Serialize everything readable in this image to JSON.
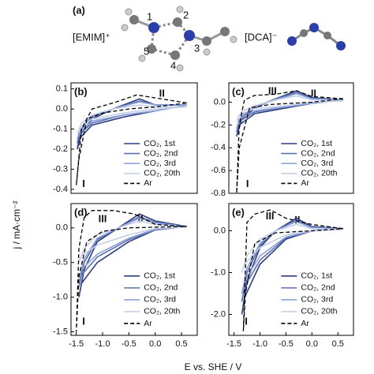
{
  "figure_a": {
    "label": "(a)",
    "cation": "[EMIM]⁺",
    "anion": "[DCA]⁻",
    "atom_numbers": [
      "1",
      "2",
      "3",
      "4",
      "5"
    ]
  },
  "shared_labels": {
    "x": "E vs. SHE / V",
    "y": "j / mA·cm⁻²"
  },
  "chart_data": [
    {
      "type": "line",
      "label": "(b)",
      "annotations": [
        "II",
        "I"
      ],
      "xlim": [
        -1.6,
        0.8
      ],
      "ylim": [
        -0.42,
        0.13
      ],
      "yticks": [
        0.1,
        {
          "value": 0,
          "label": "0.0"
        },
        -0.1,
        -0.2,
        -0.3,
        -0.4
      ],
      "series": [
        {
          "name": "CO₂, 1st",
          "color": "#2c3e80",
          "x": [
            0.6,
            0,
            -0.3,
            -0.8,
            -1.2,
            -1.4,
            -1.48,
            -1.45,
            -1.2,
            -0.6,
            0,
            0.6
          ],
          "values": [
            0.02,
            0.02,
            0.05,
            0,
            -0.05,
            -0.12,
            -0.2,
            -0.15,
            -0.08,
            -0.04,
            -0.01,
            0.02
          ]
        },
        {
          "name": "CO₂, 2nd",
          "color": "#5a6fb0",
          "x": [
            0.6,
            0,
            -0.3,
            -0.8,
            -1.2,
            -1.4,
            -1.48,
            -1.45,
            -1.2,
            -0.6,
            0,
            0.6
          ],
          "values": [
            0.02,
            0.02,
            0.04,
            0,
            -0.04,
            -0.1,
            -0.17,
            -0.13,
            -0.07,
            -0.03,
            -0.01,
            0.02
          ]
        },
        {
          "name": "CO₂, 3rd",
          "color": "#8ea2d8",
          "x": [
            0.6,
            0,
            -0.3,
            -0.8,
            -1.2,
            -1.4,
            -1.48,
            -1.45,
            -1.2,
            -0.6,
            0,
            0.6
          ],
          "values": [
            0.02,
            0.02,
            0.035,
            0,
            -0.035,
            -0.09,
            -0.15,
            -0.12,
            -0.06,
            -0.03,
            -0.01,
            0.02
          ]
        },
        {
          "name": "CO₂, 20th",
          "color": "#c5cfe8",
          "x": [
            0.6,
            0,
            -0.3,
            -0.8,
            -1.2,
            -1.4,
            -1.48,
            -1.45,
            -1.2,
            -0.6,
            0,
            0.6
          ],
          "values": [
            0.01,
            0.01,
            0.02,
            0,
            -0.03,
            -0.07,
            -0.12,
            -0.1,
            -0.05,
            -0.02,
            0,
            0.01
          ]
        },
        {
          "name": "Ar",
          "color": "#000000",
          "x": [
            0.6,
            -0.35,
            -0.8,
            -1.2,
            -1.4,
            -1.5,
            -1.45,
            -1.3,
            -1.0,
            -0.5,
            0,
            0.6
          ],
          "values": [
            0.03,
            0.07,
            0.03,
            0,
            -0.1,
            -0.38,
            -0.25,
            -0.05,
            -0.02,
            0,
            0.01,
            0.03
          ]
        }
      ]
    },
    {
      "type": "line",
      "label": "(c)",
      "annotations": [
        "III",
        "II",
        "I"
      ],
      "xlim": [
        -1.6,
        0.8
      ],
      "ylim": [
        -0.8,
        0.17
      ],
      "yticks": [
        {
          "value": 0,
          "label": "0.0"
        },
        -0.2,
        -0.4,
        -0.6,
        -0.8
      ],
      "series": [
        {
          "name": "CO₂, 1st",
          "color": "#2c3e80",
          "x": [
            0.6,
            0,
            -0.3,
            -0.7,
            -1.1,
            -1.35,
            -1.45,
            -1.4,
            -1.1,
            -0.5,
            0,
            0.6
          ],
          "values": [
            0.02,
            0.04,
            0.1,
            0.03,
            -0.05,
            -0.15,
            -0.3,
            -0.2,
            -0.1,
            -0.05,
            -0.01,
            0.02
          ]
        },
        {
          "name": "CO₂, 2nd",
          "color": "#5a6fb0",
          "x": [
            0.6,
            0,
            -0.3,
            -0.7,
            -1.1,
            -1.35,
            -1.45,
            -1.4,
            -1.1,
            -0.5,
            0,
            0.6
          ],
          "values": [
            0.02,
            0.03,
            0.085,
            0.03,
            -0.04,
            -0.13,
            -0.26,
            -0.17,
            -0.085,
            -0.04,
            -0.01,
            0.02
          ]
        },
        {
          "name": "CO₂, 3rd",
          "color": "#8ea2d8",
          "x": [
            0.6,
            0,
            -0.3,
            -0.7,
            -1.1,
            -1.35,
            -1.45,
            -1.4,
            -1.1,
            -0.5,
            0,
            0.6
          ],
          "values": [
            0.02,
            0.03,
            0.075,
            0.02,
            -0.04,
            -0.11,
            -0.23,
            -0.15,
            -0.075,
            -0.04,
            -0.01,
            0.02
          ]
        },
        {
          "name": "CO₂, 20th",
          "color": "#c5cfe8",
          "x": [
            0.6,
            0,
            -0.3,
            -0.7,
            -1.1,
            -1.35,
            -1.45,
            -1.4,
            -1.1,
            -0.5,
            0,
            0.6
          ],
          "values": [
            0.01,
            0.02,
            0.055,
            0.02,
            -0.03,
            -0.08,
            -0.17,
            -0.11,
            -0.055,
            -0.03,
            0,
            0.01
          ]
        },
        {
          "name": "Ar",
          "color": "#000000",
          "x": [
            0.6,
            0,
            -0.3,
            -0.7,
            -1.1,
            -1.3,
            -1.4,
            -1.45,
            -1.4,
            -1.2,
            -0.8,
            0,
            0.6
          ],
          "values": [
            0.03,
            0.05,
            0.1,
            0.07,
            0.06,
            0.02,
            -0.2,
            -0.8,
            -0.4,
            -0.05,
            -0.02,
            0,
            0.03
          ]
        }
      ]
    },
    {
      "type": "line",
      "label": "(d)",
      "annotations": [
        "III",
        "II",
        "I"
      ],
      "xlim": [
        -1.6,
        0.8
      ],
      "ylim": [
        -1.55,
        0.35
      ],
      "xticks": [
        -1.5,
        {
          "value": -1,
          "label": "-1.0"
        },
        -0.5,
        {
          "value": 0,
          "label": "0.0"
        },
        0.5
      ],
      "yticks": [
        {
          "value": 0,
          "label": "0.0"
        },
        -0.5,
        {
          "value": -1,
          "label": "-1.0"
        },
        -1.5
      ],
      "series": [
        {
          "name": "CO₂, 1st",
          "color": "#2c3e80",
          "x": [
            0.6,
            0,
            -0.3,
            -0.7,
            -1.1,
            -1.35,
            -1.45,
            -1.4,
            -1.1,
            -0.5,
            0,
            0.6
          ],
          "values": [
            0.02,
            0.1,
            0.2,
            0,
            -0.2,
            -0.6,
            -1.0,
            -0.8,
            -0.5,
            -0.2,
            -0.03,
            0.02
          ]
        },
        {
          "name": "CO₂, 2nd",
          "color": "#5a6fb0",
          "x": [
            0.6,
            0,
            -0.3,
            -0.7,
            -1.1,
            -1.35,
            -1.45,
            -1.4,
            -1.1,
            -0.5,
            0,
            0.6
          ],
          "values": [
            0.02,
            0.08,
            0.16,
            0,
            -0.17,
            -0.5,
            -0.85,
            -0.68,
            -0.42,
            -0.17,
            -0.03,
            0.02
          ]
        },
        {
          "name": "CO₂, 3rd",
          "color": "#8ea2d8",
          "x": [
            0.6,
            0,
            -0.3,
            -0.7,
            -1.1,
            -1.35,
            -1.45,
            -1.4,
            -1.1,
            -0.5,
            0,
            0.6
          ],
          "values": [
            0.02,
            0.07,
            0.14,
            0,
            -0.15,
            -0.45,
            -0.75,
            -0.6,
            -0.38,
            -0.15,
            -0.02,
            0.02
          ]
        },
        {
          "name": "CO₂, 20th",
          "color": "#c5cfe8",
          "x": [
            0.6,
            0,
            -0.3,
            -0.7,
            -1.1,
            -1.35,
            -1.45,
            -1.4,
            -1.1,
            -0.5,
            0,
            0.6
          ],
          "values": [
            0.01,
            0.05,
            0.1,
            0,
            -0.1,
            -0.3,
            -0.5,
            -0.4,
            -0.25,
            -0.1,
            -0.01,
            0.01
          ]
        },
        {
          "name": "Ar",
          "color": "#000000",
          "x": [
            0.6,
            0,
            -0.4,
            -0.8,
            -1.2,
            -1.35,
            -1.45,
            -1.5,
            -1.45,
            -1.3,
            -1,
            -0.5,
            0,
            0.6
          ],
          "values": [
            0.02,
            0.05,
            0.2,
            0.25,
            0.25,
            0.15,
            -0.3,
            -1.5,
            -0.7,
            -0.2,
            -0.05,
            0,
            0.01,
            0.02
          ]
        }
      ]
    },
    {
      "type": "line",
      "label": "(e)",
      "annotations": [
        "III",
        "II",
        "I"
      ],
      "xlim": [
        -1.6,
        0.8
      ],
      "ylim": [
        -2.5,
        0.65
      ],
      "xticks": [
        -1.5,
        {
          "value": -1,
          "label": "-1.0"
        },
        -0.5,
        {
          "value": 0,
          "label": "0.0"
        },
        0.5
      ],
      "yticks": [
        {
          "value": 0,
          "label": "0.0"
        },
        {
          "value": -1,
          "label": "-1.0"
        },
        {
          "value": -2,
          "label": "-2.0"
        }
      ],
      "series": [
        {
          "name": "CO₂, 1st",
          "color": "#2c3e80",
          "x": [
            0.6,
            0,
            -0.3,
            -0.7,
            -1.0,
            -1.25,
            -1.35,
            -1.3,
            -1.0,
            -0.5,
            0,
            0.6
          ],
          "values": [
            0.05,
            0.1,
            0.3,
            0,
            -0.4,
            -1.2,
            -2.0,
            -1.6,
            -0.8,
            -0.2,
            0,
            0.05
          ]
        },
        {
          "name": "CO₂, 2nd",
          "color": "#5a6fb0",
          "x": [
            0.6,
            0,
            -0.3,
            -0.7,
            -1.0,
            -1.25,
            -1.35,
            -1.3,
            -1.0,
            -0.5,
            0,
            0.6
          ],
          "values": [
            0.05,
            0.08,
            0.25,
            0,
            -0.35,
            -1.0,
            -1.7,
            -1.35,
            -0.7,
            -0.17,
            0,
            0.05
          ]
        },
        {
          "name": "CO₂, 3rd",
          "color": "#8ea2d8",
          "x": [
            0.6,
            0,
            -0.3,
            -0.7,
            -1.0,
            -1.25,
            -1.35,
            -1.3,
            -1.0,
            -0.5,
            0,
            0.6
          ],
          "values": [
            0.04,
            0.07,
            0.22,
            0,
            -0.3,
            -0.9,
            -1.5,
            -1.2,
            -0.6,
            -0.15,
            0,
            0.04
          ]
        },
        {
          "name": "CO₂, 20th",
          "color": "#c5cfe8",
          "x": [
            0.6,
            0,
            -0.3,
            -0.7,
            -1.0,
            -1.25,
            -1.35,
            -1.3,
            -1.0,
            -0.5,
            0,
            0.6
          ],
          "values": [
            0.03,
            0.05,
            0.15,
            0,
            -0.2,
            -0.6,
            -1.0,
            -0.8,
            -0.4,
            -0.1,
            0,
            0.03
          ]
        },
        {
          "name": "Ar",
          "color": "#000000",
          "x": [
            0.6,
            0,
            -0.5,
            -0.8,
            -1.1,
            -1.25,
            -1.32,
            -1.28,
            -1.1,
            -0.7,
            0,
            0.6
          ],
          "values": [
            0.05,
            0.15,
            0.3,
            0.5,
            0.4,
            0.2,
            -2.4,
            -1.5,
            -0.3,
            -0.05,
            0,
            0.05
          ]
        }
      ]
    }
  ]
}
